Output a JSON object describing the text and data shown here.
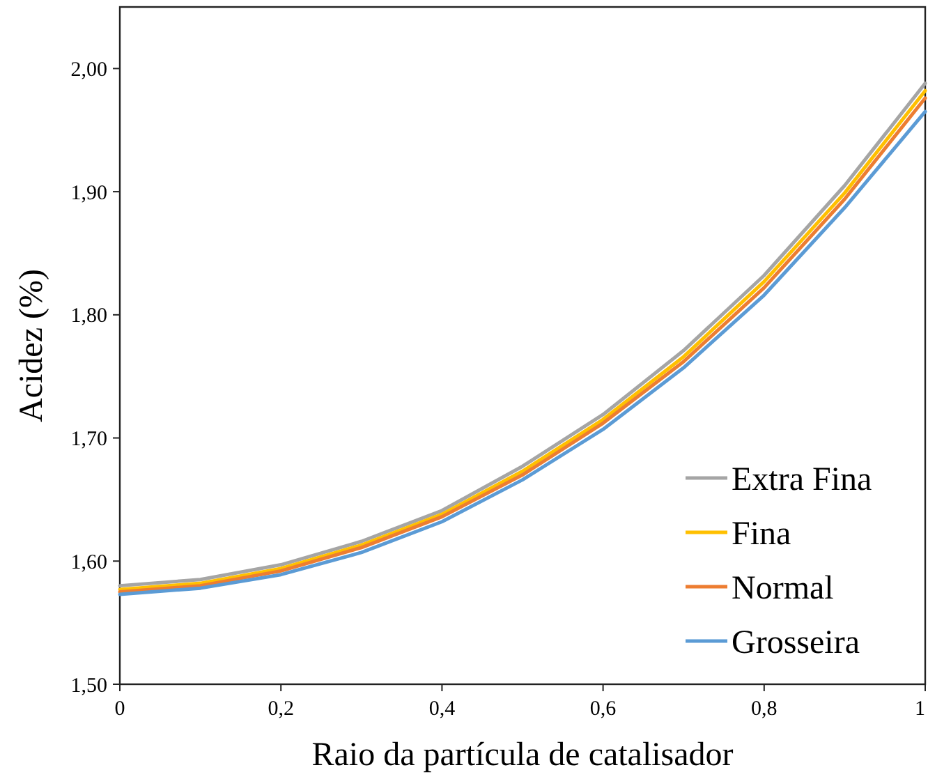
{
  "chart_data": {
    "type": "line",
    "xlabel": "Raio da partícula de catalisador",
    "ylabel": "Acidez (%)",
    "x": [
      0,
      0.1,
      0.2,
      0.3,
      0.4,
      0.5,
      0.6,
      0.7,
      0.8,
      0.9,
      1
    ],
    "series": [
      {
        "name": "Extra Fina",
        "color": "#a5a5a5",
        "values": [
          1.58,
          1.585,
          1.597,
          1.616,
          1.641,
          1.677,
          1.719,
          1.771,
          1.832,
          1.905,
          1.988
        ]
      },
      {
        "name": "Fina",
        "color": "#ffc000",
        "values": [
          1.577,
          1.582,
          1.594,
          1.613,
          1.638,
          1.673,
          1.715,
          1.766,
          1.827,
          1.899,
          1.982
        ]
      },
      {
        "name": "Normal",
        "color": "#ed7d31",
        "values": [
          1.575,
          1.58,
          1.592,
          1.611,
          1.636,
          1.67,
          1.712,
          1.762,
          1.822,
          1.894,
          1.976
        ]
      },
      {
        "name": "Grosseira",
        "color": "#5b9bd5",
        "values": [
          1.573,
          1.578,
          1.589,
          1.607,
          1.632,
          1.666,
          1.707,
          1.757,
          1.816,
          1.887,
          1.965
        ]
      }
    ],
    "xlim": [
      0,
      1
    ],
    "ylim": [
      1.5,
      2.05
    ],
    "xticks": [
      0,
      {
        "value": 0.2,
        "label": "0,2"
      },
      {
        "value": 0.4,
        "label": "0,4"
      },
      {
        "value": 0.6,
        "label": "0,6"
      },
      {
        "value": 0.8,
        "label": "0,8"
      },
      1
    ],
    "yticks": [
      {
        "value": 1.5,
        "label": "1,50"
      },
      {
        "value": 1.6,
        "label": "1,60"
      },
      {
        "value": 1.7,
        "label": "1,70"
      },
      {
        "value": 1.8,
        "label": "1,80"
      },
      {
        "value": 1.9,
        "label": "1,90"
      },
      {
        "value": 2.0,
        "label": "2,00"
      }
    ],
    "legend": "bottom right",
    "grid": false,
    "marker": "none",
    "line_style": "solid"
  }
}
